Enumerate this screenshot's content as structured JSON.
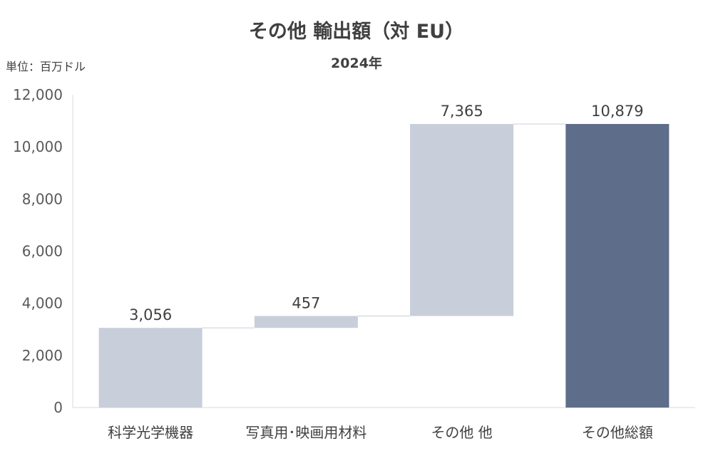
{
  "chart_data": {
    "type": "waterfall",
    "title": "その他 輸出額（対 EU）",
    "subtitle": "2024年",
    "unit_label": "単位：百万ドル",
    "categories": [
      "科学光学機器",
      "写真用･映画用材料",
      "その他 他",
      "その他総額"
    ],
    "values": [
      3056,
      457,
      7365,
      10879
    ],
    "data_labels": [
      "3,056",
      "457",
      "7,365",
      "10,879"
    ],
    "is_total": [
      false,
      false,
      false,
      true
    ],
    "ylim": [
      0,
      12000
    ],
    "yticks": [
      0,
      2000,
      4000,
      6000,
      8000,
      10000,
      12000
    ],
    "ytick_labels": [
      "0",
      "2,000",
      "4,000",
      "6,000",
      "8,000",
      "10,000",
      "12,000"
    ],
    "grid": false,
    "colors": {
      "step": "#c8ceda",
      "total": "#5e6d8a",
      "connector": "#d0d4dc",
      "axis": "#d9d9d9"
    }
  }
}
